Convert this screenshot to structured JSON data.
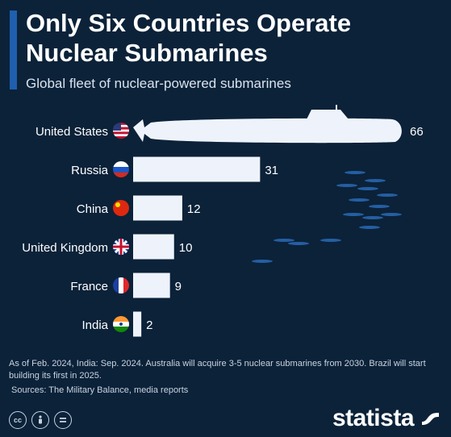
{
  "header": {
    "title": "Only Six Countries Operate Nuclear Submarines",
    "subtitle": "Global fleet of nuclear-powered submarines"
  },
  "footer": {
    "note": "As of Feb. 2024, India: Sep. 2024. Australia will acquire 3-5 nuclear submarines from 2030. Brazil will start building its first in 2025.",
    "sources": "Sources: The Military Balance, media reports",
    "brand": "statista",
    "license_icons": [
      "creative-commons-icon",
      "attribution-icon",
      "no-derivatives-icon"
    ]
  },
  "colors": {
    "background": "#0b2239",
    "bar": "#eef3fb",
    "accent": "#1f5fae",
    "fish": "#2a68b5"
  },
  "chart_data": {
    "type": "bar",
    "orientation": "horizontal",
    "categories": [
      "United States",
      "Russia",
      "China",
      "United Kingdom",
      "France",
      "India"
    ],
    "values": [
      66,
      31,
      12,
      10,
      9,
      2
    ],
    "flags": [
      "us-flag-icon",
      "russia-flag-icon",
      "china-flag-icon",
      "uk-flag-icon",
      "france-flag-icon",
      "india-flag-icon"
    ],
    "xlim": [
      0,
      66
    ],
    "grid": false,
    "legend": "none",
    "title": "",
    "xlabel": "",
    "ylabel": ""
  }
}
